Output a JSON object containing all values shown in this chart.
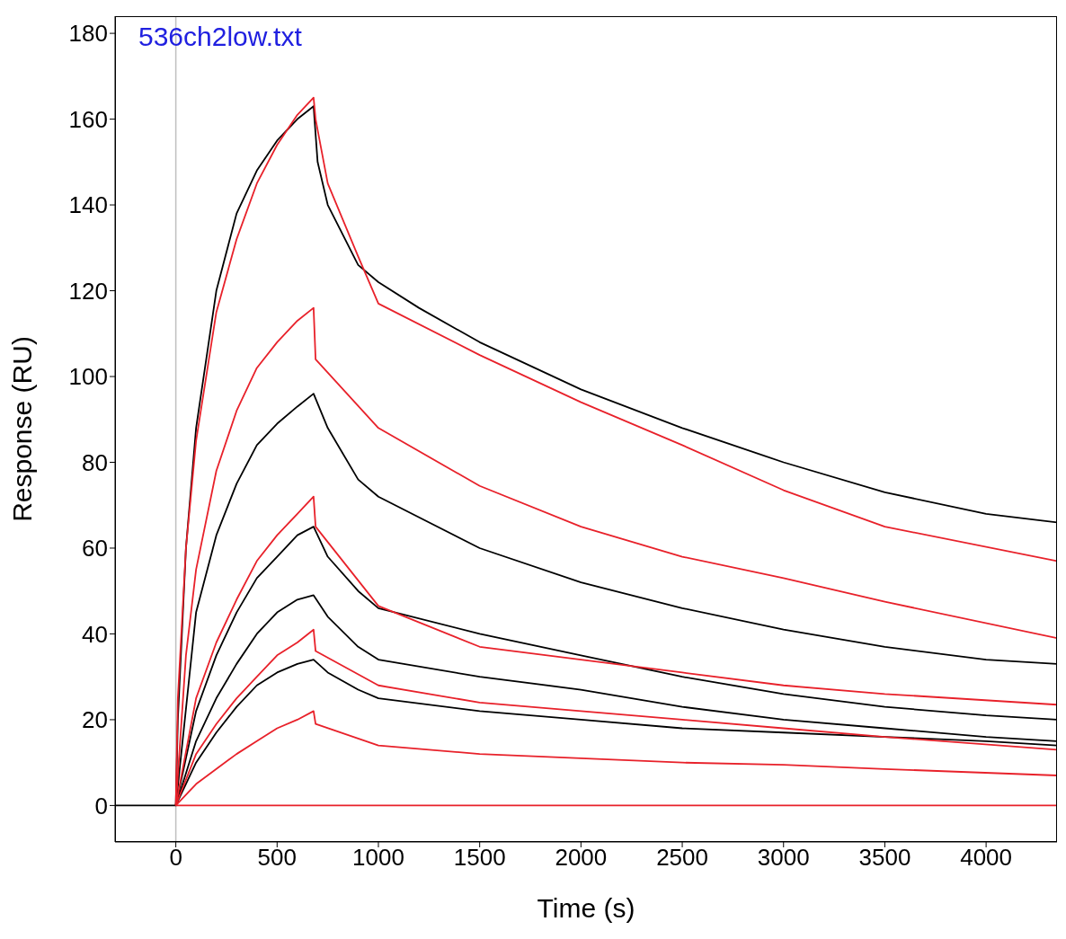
{
  "chart_data": {
    "type": "line",
    "title": "536ch2low.txt",
    "xlabel": "Time (s)",
    "ylabel": "Response (RU)",
    "xlim": [
      -300,
      4350
    ],
    "xticks": [
      0,
      500,
      1000,
      1500,
      2000,
      2500,
      3000,
      3500,
      4000
    ],
    "ylim": [
      -8.5,
      184
    ],
    "yticks": [
      0,
      20,
      40,
      60,
      80,
      100,
      120,
      140,
      160,
      180
    ],
    "grid": false,
    "marker": "none",
    "line_style": "solid",
    "ref_lines": [
      {
        "axis": "x",
        "value": 0,
        "color": "#c0c0c0"
      }
    ],
    "series": [
      {
        "color": "#000000",
        "x": [
          -300,
          0,
          10,
          50,
          100,
          200,
          300,
          400,
          500,
          600,
          680,
          700,
          750,
          900,
          1000,
          1200,
          1500,
          2000,
          2500,
          3000,
          3500,
          4000,
          4350
        ],
        "values": [
          0,
          0,
          20,
          60,
          88,
          120,
          138,
          148,
          155,
          160,
          163,
          150,
          140,
          126,
          122,
          116,
          108,
          97,
          88,
          80,
          73,
          68,
          66
        ]
      },
      {
        "color": "#000000",
        "x": [
          0,
          100,
          200,
          300,
          400,
          500,
          600,
          680,
          750,
          900,
          1000,
          1500,
          2000,
          2500,
          3000,
          3500,
          4000,
          4350
        ],
        "values": [
          0,
          45,
          63,
          75,
          84,
          89,
          93,
          96,
          88,
          76,
          72,
          60,
          52,
          46,
          41,
          37,
          34,
          33
        ]
      },
      {
        "color": "#000000",
        "x": [
          0,
          100,
          200,
          300,
          400,
          500,
          600,
          680,
          750,
          900,
          1000,
          1500,
          2000,
          2500,
          3000,
          3500,
          4000,
          4350
        ],
        "values": [
          0,
          22,
          35,
          45,
          53,
          58,
          63,
          65,
          58,
          50,
          46,
          40,
          35,
          30,
          26,
          23,
          21,
          20
        ]
      },
      {
        "color": "#000000",
        "x": [
          0,
          100,
          200,
          300,
          400,
          500,
          600,
          680,
          750,
          900,
          1000,
          1500,
          2000,
          2500,
          3000,
          3500,
          4000,
          4350
        ],
        "values": [
          0,
          15,
          25,
          33,
          40,
          45,
          48,
          49,
          44,
          37,
          34,
          30,
          27,
          23,
          20,
          18,
          16,
          15
        ]
      },
      {
        "color": "#000000",
        "x": [
          0,
          100,
          200,
          300,
          400,
          500,
          600,
          680,
          750,
          900,
          1000,
          1500,
          2000,
          2500,
          3000,
          3500,
          4000,
          4350
        ],
        "values": [
          0,
          10,
          17,
          23,
          28,
          31,
          33,
          34,
          31,
          27,
          25,
          22,
          20,
          18,
          17,
          16,
          15,
          14
        ]
      },
      {
        "color": "#e8212a",
        "x": [
          0,
          10,
          50,
          100,
          200,
          300,
          400,
          500,
          600,
          680,
          690,
          750,
          900,
          1000,
          1500,
          2000,
          2500,
          3000,
          3500,
          4350
        ],
        "values": [
          0,
          25,
          60,
          85,
          115,
          132,
          145,
          154,
          161,
          165,
          160,
          145,
          128,
          117,
          105,
          94,
          84,
          73.5,
          65,
          57
        ]
      },
      {
        "color": "#e8212a",
        "x": [
          0,
          50,
          100,
          200,
          300,
          400,
          500,
          600,
          680,
          690,
          1000,
          1500,
          2000,
          2500,
          3000,
          3500,
          4350
        ],
        "values": [
          0,
          35,
          55,
          78,
          92,
          102,
          108,
          113,
          116,
          104,
          88,
          74.5,
          65,
          58,
          53,
          47.5,
          39
        ]
      },
      {
        "color": "#e8212a",
        "x": [
          0,
          100,
          200,
          300,
          400,
          500,
          600,
          680,
          690,
          1000,
          1500,
          2000,
          2500,
          3000,
          3500,
          4350
        ],
        "values": [
          0,
          25,
          38,
          48,
          57,
          63,
          68,
          72,
          65,
          46.5,
          37,
          34,
          31,
          28,
          26,
          23.5
        ]
      },
      {
        "color": "#e8212a",
        "x": [
          0,
          100,
          200,
          300,
          400,
          500,
          600,
          680,
          690,
          1000,
          1500,
          2000,
          2500,
          3000,
          3500,
          4350
        ],
        "values": [
          0,
          12,
          19,
          25,
          30,
          35,
          38,
          41,
          36,
          28,
          24,
          22,
          20,
          18,
          16,
          13
        ]
      },
      {
        "color": "#e8212a",
        "x": [
          0,
          100,
          200,
          300,
          400,
          500,
          600,
          680,
          690,
          1000,
          1500,
          2000,
          2500,
          3000,
          3500,
          4350
        ],
        "values": [
          0,
          5,
          8.5,
          12,
          15,
          18,
          20,
          22,
          19,
          14,
          12,
          11,
          10,
          9.5,
          8.5,
          7
        ]
      },
      {
        "color": "#e8212a",
        "x": [
          0,
          4350
        ],
        "values": [
          0,
          0
        ]
      }
    ]
  }
}
